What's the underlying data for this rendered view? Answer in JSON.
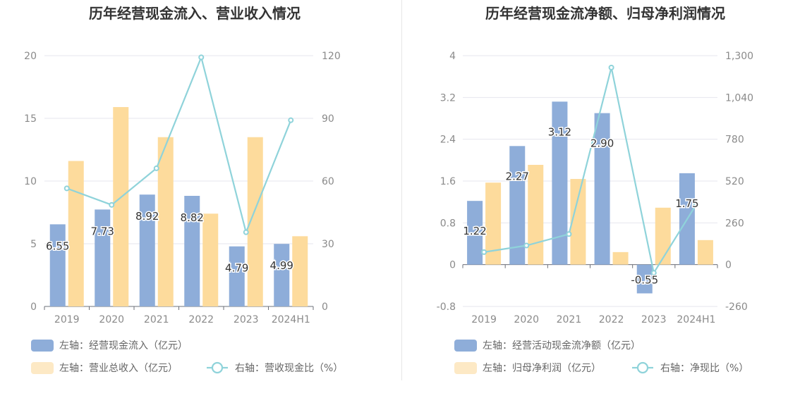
{
  "colors": {
    "bar_primary": "#8eadd9",
    "bar_secondary": "#fddb9c",
    "line": "#8fd3da",
    "axis_text": "#8a8a8a",
    "title": "#333333",
    "grid": "#e6e6ee"
  },
  "chart_data": [
    {
      "type": "bar",
      "title": "历年经营现金流入、营业收入情况",
      "categories": [
        "2019",
        "2020",
        "2021",
        "2022",
        "2023",
        "2024H1"
      ],
      "y_left": {
        "ticks": [
          "0",
          "5",
          "10",
          "15",
          "20"
        ],
        "min": 0,
        "max": 20
      },
      "y_right": {
        "ticks": [
          "0",
          "30",
          "60",
          "90",
          "120"
        ],
        "min": 0,
        "max": 120
      },
      "series": [
        {
          "name": "左轴：经营现金流入（亿元）",
          "kind": "bar",
          "axis": "left",
          "color": "#8eadd9",
          "values": [
            6.55,
            7.73,
            8.92,
            8.82,
            4.79,
            4.99
          ],
          "labels": [
            "6.55",
            "7.73",
            "8.92",
            "8.82",
            "4.79",
            "4.99"
          ]
        },
        {
          "name": "左轴：营业总收入（亿元）",
          "kind": "bar",
          "axis": "left",
          "color": "#fddb9c",
          "values": [
            11.6,
            15.9,
            13.5,
            7.4,
            13.5,
            5.6
          ]
        },
        {
          "name": "右轴：营收现金比（%）",
          "kind": "line",
          "axis": "right",
          "color": "#8fd3da",
          "values": [
            56.5,
            48.6,
            66.1,
            119.2,
            35.5,
            89.1
          ]
        }
      ]
    },
    {
      "type": "bar",
      "title": "历年经营现金流净额、归母净利润情况",
      "categories": [
        "2019",
        "2020",
        "2021",
        "2022",
        "2023",
        "2024H1"
      ],
      "y_left": {
        "ticks": [
          "-0.8",
          "0",
          "0.8",
          "1.6",
          "2.4",
          "3.2",
          "4"
        ],
        "min": -0.8,
        "max": 4
      },
      "y_right": {
        "ticks": [
          "-260",
          "0",
          "260",
          "520",
          "780",
          "1,040",
          "1,300"
        ],
        "min": -260,
        "max": 1300
      },
      "series": [
        {
          "name": "左轴：经营活动现金流净额（亿元）",
          "kind": "bar",
          "axis": "left",
          "color": "#8eadd9",
          "values": [
            1.22,
            2.27,
            3.12,
            2.9,
            -0.55,
            1.75
          ],
          "labels": [
            "1.22",
            "2.27",
            "3.12",
            "2.90",
            "-0.55",
            "1.75"
          ]
        },
        {
          "name": "左轴：归母净利润（亿元）",
          "kind": "bar",
          "axis": "left",
          "color": "#fddb9c",
          "values": [
            1.57,
            1.91,
            1.64,
            0.24,
            1.09,
            0.47
          ]
        },
        {
          "name": "右轴：净现比（%）",
          "kind": "line",
          "axis": "right",
          "color": "#8fd3da",
          "values": [
            78,
            119,
            190,
            1226,
            -51,
            374
          ]
        }
      ]
    }
  ]
}
